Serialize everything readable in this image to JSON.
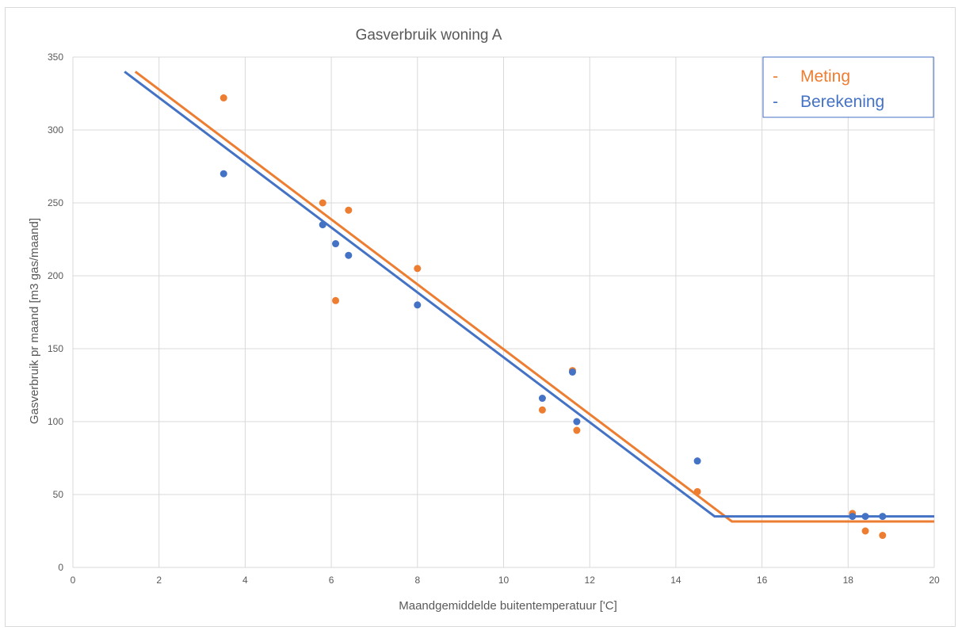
{
  "chart_data": {
    "type": "scatter",
    "title": "Gasverbruik woning A",
    "xlabel": "Maandgemiddelde buitentemperatuur ['C]",
    "ylabel": "Gasverbruik pr maand [m3 gas/maand]",
    "xlim": [
      0,
      20
    ],
    "ylim": [
      0,
      350
    ],
    "xticks": [
      0,
      2,
      4,
      6,
      8,
      10,
      12,
      14,
      16,
      18,
      20
    ],
    "yticks": [
      0,
      50,
      100,
      150,
      200,
      250,
      300,
      350
    ],
    "grid": "vertical and horizontal",
    "legend_position": "top-right",
    "series": [
      {
        "name": "Meting",
        "color": "#ED7D31",
        "points": [
          {
            "x": 3.5,
            "y": 322
          },
          {
            "x": 5.8,
            "y": 250
          },
          {
            "x": 6.1,
            "y": 183
          },
          {
            "x": 6.4,
            "y": 245
          },
          {
            "x": 8.0,
            "y": 205
          },
          {
            "x": 10.9,
            "y": 108
          },
          {
            "x": 11.6,
            "y": 135
          },
          {
            "x": 11.7,
            "y": 94
          },
          {
            "x": 14.5,
            "y": 52
          },
          {
            "x": 18.1,
            "y": 37
          },
          {
            "x": 18.4,
            "y": 25
          },
          {
            "x": 18.8,
            "y": 22
          }
        ],
        "line": [
          {
            "x": 1.45,
            "y": 340
          },
          {
            "x": 15.3,
            "y": 31.5
          },
          {
            "x": 20,
            "y": 31.5
          }
        ]
      },
      {
        "name": "Berekening",
        "color": "#4472C4",
        "points": [
          {
            "x": 3.5,
            "y": 270
          },
          {
            "x": 5.8,
            "y": 235
          },
          {
            "x": 6.1,
            "y": 222
          },
          {
            "x": 6.4,
            "y": 214
          },
          {
            "x": 8.0,
            "y": 180
          },
          {
            "x": 10.9,
            "y": 116
          },
          {
            "x": 11.6,
            "y": 134
          },
          {
            "x": 11.7,
            "y": 100
          },
          {
            "x": 14.5,
            "y": 73
          },
          {
            "x": 18.1,
            "y": 35
          },
          {
            "x": 18.4,
            "y": 35
          },
          {
            "x": 18.8,
            "y": 35
          }
        ],
        "line": [
          {
            "x": 1.2,
            "y": 340
          },
          {
            "x": 14.9,
            "y": 35
          },
          {
            "x": 20,
            "y": 35
          }
        ]
      }
    ],
    "legend": [
      {
        "marker": "-",
        "label": "Meting",
        "color": "#ED7D31"
      },
      {
        "marker": "-",
        "label": "Berekening",
        "color": "#4472C4"
      }
    ]
  }
}
